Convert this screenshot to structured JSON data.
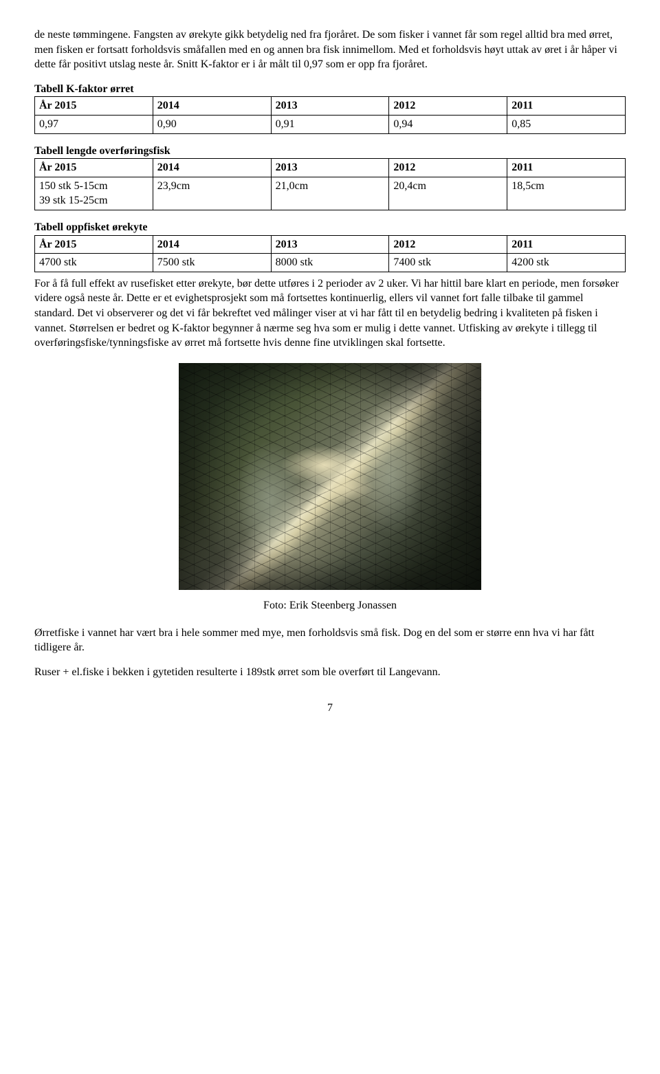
{
  "para1": "de neste tømmingene. Fangsten av ørekyte gikk betydelig ned fra fjoråret. De som fisker i vannet får som regel alltid bra med ørret, men fisken er fortsatt forholdsvis småfallen med en og annen bra fisk innimellom. Med et forholdsvis høyt uttak av øret i år håper vi dette får positivt utslag neste år. Snitt K-faktor er i år målt til 0,97 som er opp fra fjoråret.",
  "table1": {
    "title": "Tabell K-faktor ørret",
    "headers": [
      "År 2015",
      "2014",
      "2013",
      "2012",
      "2011"
    ],
    "row": [
      "0,97",
      "0,90",
      "0,91",
      "0,94",
      "0,85"
    ]
  },
  "table2": {
    "title": "Tabell lengde overføringsfisk",
    "headers": [
      "År 2015",
      "2014",
      "2013",
      "2012",
      "2011"
    ],
    "row": [
      "150 stk 5-15cm\n39 stk 15-25cm",
      "23,9cm",
      "21,0cm",
      "20,4cm",
      "18,5cm"
    ]
  },
  "table3": {
    "title": "Tabell oppfisket ørekyte",
    "headers": [
      "År 2015",
      "2014",
      "2013",
      "2012",
      "2011"
    ],
    "row": [
      "4700 stk",
      "7500 stk",
      "8000 stk",
      "7400 stk",
      "4200 stk"
    ]
  },
  "para2": "For å få full effekt av rusefisket etter ørekyte, bør dette utføres i 2 perioder av 2 uker. Vi har hittil bare klart en periode, men forsøker videre også neste år. Dette er et evighetsprosjekt som må fortsettes kontinuerlig, ellers vil vannet fort falle tilbake til gammel standard. Det vi observerer og det vi får bekreftet ved målinger viser at vi har fått til en betydelig bedring i kvaliteten på fisken i vannet. Størrelsen er bedret og K-faktor begynner å nærme seg hva som er mulig i dette vannet. Utfisking av ørekyte i tillegg til overføringsfiske/tynningsfiske av ørret må fortsette hvis denne fine utviklingen skal fortsette.",
  "caption": "Foto: Erik Steenberg Jonassen",
  "para3": "Ørretfiske i vannet har vært bra i hele sommer med mye, men forholdsvis små fisk. Dog en del som er større enn hva vi har fått tidligere år.",
  "para4": "Ruser + el.fiske i bekken i gytetiden resulterte i 189stk ørret som ble overført til Langevann.",
  "pagenum": "7"
}
